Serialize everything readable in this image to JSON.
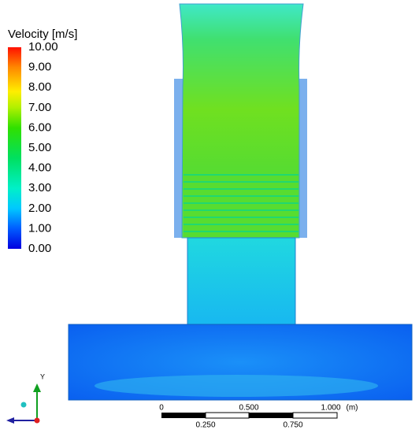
{
  "legend": {
    "title": "Velocity [m/s]",
    "ticks": [
      "10.00",
      "9.00",
      "8.00",
      "7.00",
      "6.00",
      "5.00",
      "4.00",
      "3.00",
      "2.00",
      "1.00",
      "0.00"
    ]
  },
  "scale_bar": {
    "top_labels": [
      "0",
      "0.500",
      "1.000"
    ],
    "unit": "(m)",
    "bottom_labels": [
      "0.250",
      "0.750"
    ]
  },
  "triad": {
    "axis_label": "Y"
  }
}
